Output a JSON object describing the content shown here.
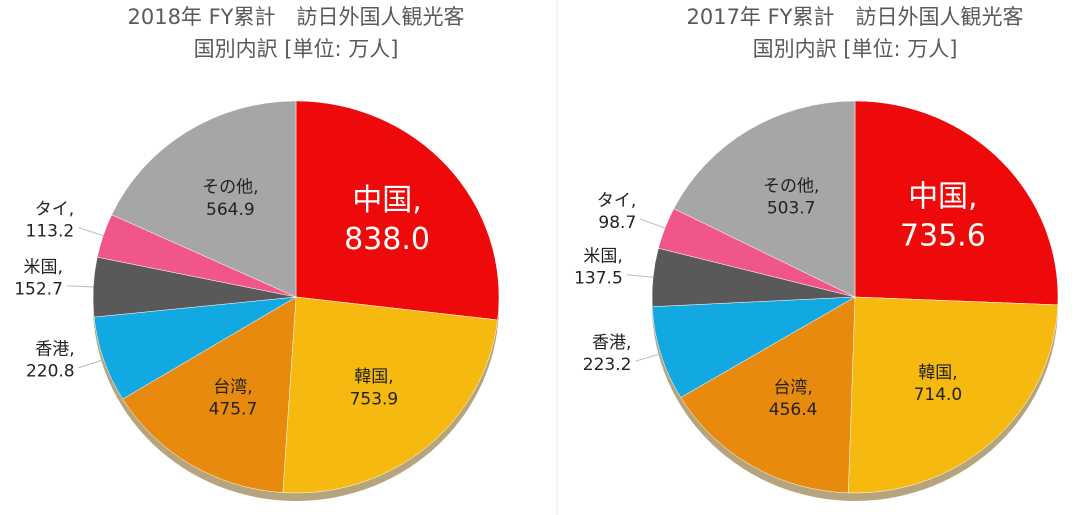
{
  "chart_data": [
    {
      "type": "pie",
      "title": "2018年 FY累計　訪日外国人観光客",
      "subtitle": "国別内訳 [単位: 万人]",
      "categories": [
        "中国,",
        "韓国,",
        "台湾,",
        "香港,",
        "米国,",
        "タイ,",
        "その他,"
      ],
      "values": [
        838.0,
        753.9,
        475.7,
        220.8,
        152.7,
        113.2,
        564.9
      ],
      "value_labels": [
        "838.0",
        "753.9",
        "475.7",
        "220.8",
        "152.7",
        "113.2",
        "564.9"
      ],
      "colors": [
        "#ee0a0a",
        "#f5b90f",
        "#e88a0e",
        "#12a8e2",
        "#595959",
        "#f0568a",
        "#a6a6a6"
      ]
    },
    {
      "type": "pie",
      "title": "2017年 FY累計　訪日外国人観光客",
      "subtitle": "国別内訳 [単位: 万人]",
      "categories": [
        "中国,",
        "韓国,",
        "台湾,",
        "香港,",
        "米国,",
        "タイ,",
        "その他,"
      ],
      "values": [
        735.6,
        714.0,
        456.4,
        223.2,
        137.5,
        98.7,
        503.7
      ],
      "value_labels": [
        "735.6",
        "714.0",
        "456.4",
        "223.2",
        "137.5",
        "98.7",
        "503.7"
      ],
      "colors": [
        "#ee0a0a",
        "#f5b90f",
        "#e88a0e",
        "#12a8e2",
        "#595959",
        "#f0568a",
        "#a6a6a6"
      ]
    }
  ]
}
